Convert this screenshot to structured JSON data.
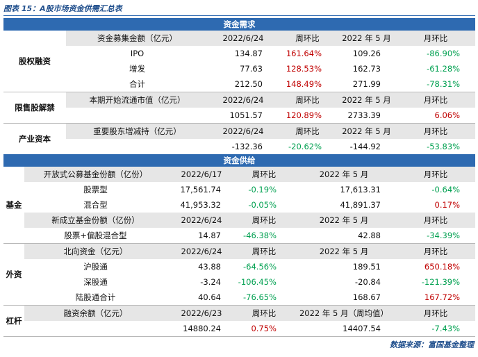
{
  "title": "图表 15：A股市场资金供需汇总表",
  "sections": [
    {
      "heading": "资金需求",
      "groups": [
        {
          "label": "股权融资",
          "blocks": [
            {
              "header": [
                "资金募集金额（亿元）",
                "2022/6/24",
                "周环比",
                "2022 年 5 月",
                "月环比"
              ],
              "rows": [
                {
                  "label": "IPO",
                  "values": [
                    "134.87",
                    "161.64%",
                    "109.26",
                    "-86.90%"
                  ]
                },
                {
                  "label": "增发",
                  "values": [
                    "77.63",
                    "128.53%",
                    "162.73",
                    "-61.28%"
                  ]
                },
                {
                  "label": "合计",
                  "values": [
                    "212.50",
                    "148.49%",
                    "271.99",
                    "-78.31%"
                  ]
                }
              ]
            }
          ]
        },
        {
          "label": "限售股解禁",
          "blocks": [
            {
              "header": [
                "本期开始流通市值（亿元）",
                "2022/6/24",
                "周环比",
                "2022 年 5 月",
                "月环比"
              ],
              "rows": [
                {
                  "values": [
                    "1051.57",
                    "120.89%",
                    "2733.39",
                    "6.06%"
                  ]
                }
              ]
            }
          ]
        },
        {
          "label": "产业资本",
          "blocks": [
            {
              "header": [
                "重要股东增减持（亿元）",
                "2022/6/24",
                "周环比",
                "2022 年 5 月",
                "月环比"
              ],
              "rows": [
                {
                  "values": [
                    "-132.36",
                    "-20.62%",
                    "-144.92",
                    "-53.83%"
                  ]
                }
              ]
            }
          ]
        }
      ]
    },
    {
      "heading": "资金供给",
      "groups": [
        {
          "label": "基金",
          "blocks": [
            {
              "header": [
                "开放式公募基金份额（亿份）",
                "2022/6/17",
                "周环比",
                "2022 年 5 月",
                "月环比"
              ],
              "rows": [
                {
                  "label": "股票型",
                  "values": [
                    "17,561.74",
                    "-0.19%",
                    "17,613.31",
                    "-0.64%"
                  ]
                },
                {
                  "label": "混合型",
                  "values": [
                    "41,953.32",
                    "-0.05%",
                    "41,891.37",
                    "0.17%"
                  ]
                }
              ]
            },
            {
              "header": [
                "新成立基金份额（亿份）",
                "2022/6/24",
                "周环比",
                "2022 年 5 月",
                "月环比"
              ],
              "rows": [
                {
                  "label": "股票+偏股混合型",
                  "values": [
                    "14.87",
                    "-46.38%",
                    "42.88",
                    "-34.39%"
                  ]
                }
              ]
            }
          ]
        },
        {
          "label": "外资",
          "blocks": [
            {
              "header": [
                "北向资金（亿元）",
                "2022/6/24",
                "周环比",
                "2022 年 5 月",
                "月环比"
              ],
              "rows": [
                {
                  "label": "沪股通",
                  "values": [
                    "43.88",
                    "-64.56%",
                    "189.51",
                    "650.18%"
                  ]
                },
                {
                  "label": "深股通",
                  "values": [
                    "-3.24",
                    "-106.45%",
                    "-20.84",
                    "-121.39%"
                  ]
                },
                {
                  "label": "陆股通合计",
                  "values": [
                    "40.64",
                    "-76.65%",
                    "168.67",
                    "167.72%"
                  ]
                }
              ]
            }
          ]
        },
        {
          "label": "杠杆",
          "blocks": [
            {
              "header": [
                "融资余额（亿元）",
                "2022/6/23",
                "周环比",
                "2022 年 5 月（周均值）",
                "月环比"
              ],
              "rows": [
                {
                  "values": [
                    "14880.24",
                    "0.75%",
                    "14407.54",
                    "-7.43%"
                  ]
                }
              ]
            }
          ]
        }
      ]
    }
  ],
  "source": "数据来源：富国基金整理"
}
